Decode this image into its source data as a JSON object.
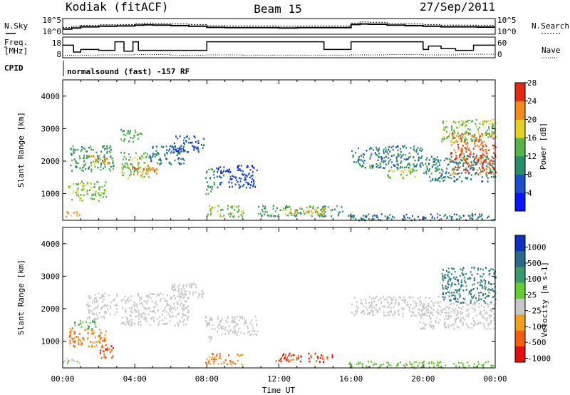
{
  "header": {
    "station": "Kodiak (fitACF)",
    "beam": "Beam 15",
    "date": "27/Sep/2011"
  },
  "top_panels": {
    "nsky_label": "N.Sky",
    "nsearch_label": "N.Search",
    "freq_label_top": "Freq.",
    "freq_label_unit": "[MHz]",
    "nave_label": "Nave",
    "cpid_label": "CPID",
    "nsky_ticks": [
      "10^5",
      "10^0"
    ],
    "nsearch_ticks": [
      "10^5",
      "10^0"
    ],
    "freq_ticks": [
      "18",
      "8"
    ],
    "nave_ticks": [
      "60",
      "0"
    ],
    "cpid_text": "normalsound (fast) -157 RF",
    "noise_series": {
      "hours": [
        0,
        0.5,
        1,
        2,
        3,
        4,
        4.5,
        5,
        6,
        7,
        8,
        9,
        10,
        11,
        12,
        13,
        14,
        15,
        16,
        16.5,
        17,
        18,
        19,
        20,
        21,
        22,
        23,
        24
      ],
      "nsky": [
        1.8,
        2.2,
        2.6,
        2.8,
        2.9,
        3.2,
        3.3,
        3.2,
        3.0,
        2.8,
        2.4,
        2.3,
        2.3,
        2.3,
        2.2,
        2.3,
        2.3,
        2.3,
        3.4,
        3.6,
        3.5,
        3.2,
        3.0,
        2.8,
        2.6,
        2.6,
        2.5,
        2.5
      ],
      "nsearch": [
        2.4,
        2.8,
        3.1,
        3.3,
        3.4,
        3.8,
        3.9,
        3.8,
        3.6,
        3.4,
        3.0,
        2.9,
        2.9,
        2.9,
        2.8,
        2.9,
        2.9,
        2.9,
        3.9,
        4.3,
        4.2,
        3.8,
        3.6,
        3.4,
        3.2,
        3.2,
        3.1,
        3.1
      ]
    },
    "freq_series": {
      "hours": [
        0,
        0.6,
        1.0,
        2.0,
        2.9,
        3.4,
        3.9,
        4.2,
        7.8,
        8.0,
        12.0,
        14.5,
        16.0,
        20.0,
        20.3,
        21.0,
        21.8,
        22.8,
        24
      ],
      "mhz": [
        14.5,
        10.5,
        12.0,
        11.5,
        16.5,
        11.0,
        16.5,
        11.5,
        11.5,
        16.5,
        16.5,
        12.0,
        16.5,
        12.0,
        14.0,
        12.5,
        11.5,
        14.5,
        14.5
      ]
    },
    "nave_series": {
      "hours": [
        0,
        2,
        4,
        6,
        8,
        10,
        12,
        14,
        16,
        18,
        20,
        22,
        24
      ],
      "values": [
        6,
        7,
        8,
        6,
        7,
        6,
        6,
        6,
        7,
        8,
        7,
        9,
        8
      ]
    }
  },
  "chart_data": [
    {
      "type": "heatmap",
      "title": "Power",
      "xlabel": "Time UT",
      "ylabel": "Slant Range [km]",
      "x_ticks": [
        "00:00",
        "04:00",
        "08:00",
        "12:00",
        "16:00",
        "20:00",
        "00:00"
      ],
      "xlim_hours": [
        0,
        24
      ],
      "ylim": [
        180,
        4500
      ],
      "y_ticks": [
        1000,
        2000,
        3000,
        4000
      ],
      "colorbar": {
        "label": "Power [dB]",
        "ticks": [
          "4",
          "8",
          "12",
          "16",
          "20",
          "24",
          "28"
        ],
        "range": [
          0,
          30
        ],
        "colors": [
          "#0a14ff",
          "#1e4ec8",
          "#2b8c6a",
          "#55b548",
          "#e6d028",
          "#f08c1e",
          "#e02a14"
        ]
      },
      "regions": [
        {
          "t0": 0.0,
          "t1": 0.9,
          "r0": 300,
          "r1": 500,
          "value": 22
        },
        {
          "t0": 0.3,
          "t1": 2.4,
          "r0": 800,
          "r1": 1400,
          "value": 16
        },
        {
          "t0": 0.4,
          "t1": 2.8,
          "r0": 1700,
          "r1": 2500,
          "value": 12
        },
        {
          "t0": 1.4,
          "t1": 2.6,
          "r0": 1900,
          "r1": 2200,
          "value": 22
        },
        {
          "t0": 3.2,
          "t1": 4.8,
          "r0": 1500,
          "r1": 2300,
          "value": 16
        },
        {
          "t0": 3.8,
          "t1": 5.3,
          "r0": 1600,
          "r1": 1900,
          "value": 24
        },
        {
          "t0": 4.8,
          "t1": 6.8,
          "r0": 1900,
          "r1": 2500,
          "value": 10
        },
        {
          "t0": 6.0,
          "t1": 7.8,
          "r0": 2300,
          "r1": 2800,
          "value": 6
        },
        {
          "t0": 3.2,
          "t1": 4.4,
          "r0": 2600,
          "r1": 3000,
          "value": 14
        },
        {
          "t0": 7.9,
          "t1": 10.0,
          "r0": 300,
          "r1": 650,
          "value": 16
        },
        {
          "t0": 7.9,
          "t1": 8.4,
          "r0": 1000,
          "r1": 1800,
          "value": 12
        },
        {
          "t0": 8.5,
          "t1": 10.8,
          "r0": 1200,
          "r1": 1900,
          "value": 6
        },
        {
          "t0": 10.8,
          "t1": 15.5,
          "r0": 320,
          "r1": 650,
          "value": 12
        },
        {
          "t0": 12.0,
          "t1": 14.5,
          "r0": 380,
          "r1": 600,
          "value": 20
        },
        {
          "t0": 16.0,
          "t1": 20.0,
          "r0": 1800,
          "r1": 2500,
          "value": 10
        },
        {
          "t0": 18.0,
          "t1": 19.6,
          "r0": 1500,
          "r1": 1800,
          "value": 18
        },
        {
          "t0": 20.0,
          "t1": 24.0,
          "r0": 1400,
          "r1": 2200,
          "value": 10
        },
        {
          "t0": 21.5,
          "t1": 24.0,
          "r0": 1600,
          "r1": 2900,
          "value": 26
        },
        {
          "t0": 21.0,
          "t1": 24.0,
          "r0": 2600,
          "r1": 3300,
          "value": 16
        },
        {
          "t0": 15.8,
          "t1": 24.0,
          "r0": 200,
          "r1": 400,
          "value": 8
        }
      ]
    },
    {
      "type": "heatmap",
      "title": "Velocity",
      "xlabel": "Time UT",
      "ylabel": "Slant Range [km]",
      "x_ticks": [
        "00:00",
        "04:00",
        "08:00",
        "12:00",
        "16:00",
        "20:00",
        "00:00"
      ],
      "xlim_hours": [
        0,
        24
      ],
      "ylim": [
        180,
        4500
      ],
      "y_ticks": [
        1000,
        2000,
        3000,
        4000
      ],
      "colorbar": {
        "label": "Velocity [m s-1]",
        "ticks": [
          "1000",
          "500",
          "100",
          "25",
          "-25",
          "-100",
          "-500",
          "-1000"
        ],
        "colors": [
          "#1030c0",
          "#2a6a8a",
          "#3a9a6a",
          "#66cc33",
          "#c8c8c8",
          "#f0a020",
          "#f06010",
          "#e01010"
        ]
      },
      "regions": [
        {
          "t0": 0.0,
          "t1": 0.9,
          "r0": 300,
          "r1": 500,
          "value": 25
        },
        {
          "t0": 0.3,
          "t1": 2.4,
          "r0": 800,
          "r1": 1400,
          "value": -100
        },
        {
          "t0": 0.5,
          "t1": 1.8,
          "r0": 1400,
          "r1": 1700,
          "value": 100
        },
        {
          "t0": 1.3,
          "t1": 3.0,
          "r0": 1700,
          "r1": 2500,
          "value": 0
        },
        {
          "t0": 2.0,
          "t1": 2.8,
          "r0": 500,
          "r1": 900,
          "value": -500
        },
        {
          "t0": 3.2,
          "t1": 7.0,
          "r0": 1500,
          "r1": 2500,
          "value": 0
        },
        {
          "t0": 6.0,
          "t1": 7.8,
          "r0": 2300,
          "r1": 2800,
          "value": 0
        },
        {
          "t0": 7.9,
          "t1": 10.0,
          "r0": 300,
          "r1": 650,
          "value": -100
        },
        {
          "t0": 7.9,
          "t1": 8.4,
          "r0": 1000,
          "r1": 1800,
          "value": 0
        },
        {
          "t0": 8.5,
          "t1": 10.8,
          "r0": 1200,
          "r1": 1800,
          "value": 0
        },
        {
          "t0": 11.8,
          "t1": 15.0,
          "r0": 380,
          "r1": 650,
          "value": -500
        },
        {
          "t0": 16.0,
          "t1": 21.0,
          "r0": 1800,
          "r1": 2400,
          "value": 0
        },
        {
          "t0": 19.8,
          "t1": 24.0,
          "r0": 1400,
          "r1": 2200,
          "value": 0
        },
        {
          "t0": 21.0,
          "t1": 24.0,
          "r0": 2200,
          "r1": 3300,
          "value": 500
        },
        {
          "t0": 15.8,
          "t1": 24.0,
          "r0": 200,
          "r1": 400,
          "value": 50
        }
      ]
    }
  ]
}
